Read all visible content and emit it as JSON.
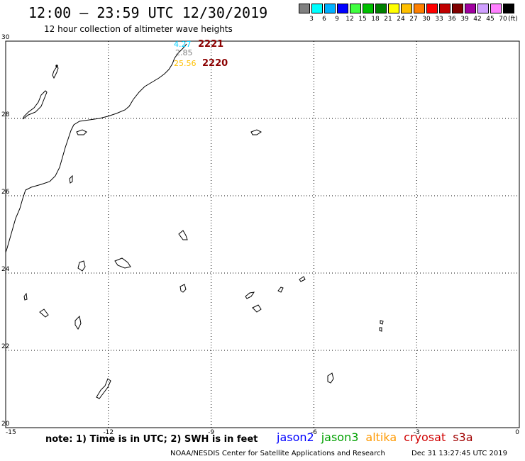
{
  "header": {
    "title": "12:00 — 23:59 UTC 12/30/2019",
    "subtitle": "12 hour collection of altimeter wave heights"
  },
  "legend": {
    "unit": "(ft)",
    "levels": [
      {
        "label": "3",
        "color": "#808080"
      },
      {
        "label": "6",
        "color": "#00ffff"
      },
      {
        "label": "9",
        "color": "#00b0ff"
      },
      {
        "label": "12",
        "color": "#0000ff"
      },
      {
        "label": "15",
        "color": "#40ff40"
      },
      {
        "label": "18",
        "color": "#00c000"
      },
      {
        "label": "21",
        "color": "#008000"
      },
      {
        "label": "24",
        "color": "#ffff00"
      },
      {
        "label": "27",
        "color": "#ffc000"
      },
      {
        "label": "30",
        "color": "#ff8000"
      },
      {
        "label": "33",
        "color": "#ff0000"
      },
      {
        "label": "36",
        "color": "#c00000"
      },
      {
        "label": "39",
        "color": "#800000"
      },
      {
        "label": "42",
        "color": "#a000a0"
      },
      {
        "label": "45",
        "color": "#d0a0ff"
      },
      {
        "label": "70",
        "color": "#ff80ff"
      },
      {
        "label": "",
        "color": "#000000"
      }
    ]
  },
  "map": {
    "lon_range": [
      -15,
      0
    ],
    "lat_range": [
      20,
      30
    ],
    "lon_ticks": [
      "-15",
      "-12",
      "-9",
      "-6",
      "-3",
      "0"
    ],
    "lat_ticks": [
      "20",
      "22",
      "24",
      "26",
      "28",
      "30"
    ],
    "grid": "dotted",
    "annotations": [
      {
        "text": "4.27",
        "color": "#00d0ff"
      },
      {
        "text": "2.85",
        "color": "#808080"
      },
      {
        "text": "25.56",
        "color": "#ffc000"
      }
    ],
    "track_ids": [
      "2221",
      "2220"
    ]
  },
  "footer": {
    "note": "note: 1) Time is in UTC; 2) SWH is in feet",
    "satellites": [
      {
        "name": "jason2",
        "color": "#0000ff"
      },
      {
        "name": "jason3",
        "color": "#00a000"
      },
      {
        "name": "altika",
        "color": "#ff9900"
      },
      {
        "name": "cryosat",
        "color": "#d00000"
      },
      {
        "name": "s3a",
        "color": "#a00000"
      }
    ],
    "credit": "NOAA/NESDIS Center for Satellite Applications and Research",
    "timestamp": "Dec 31 13:27:45 UTC 2019"
  }
}
